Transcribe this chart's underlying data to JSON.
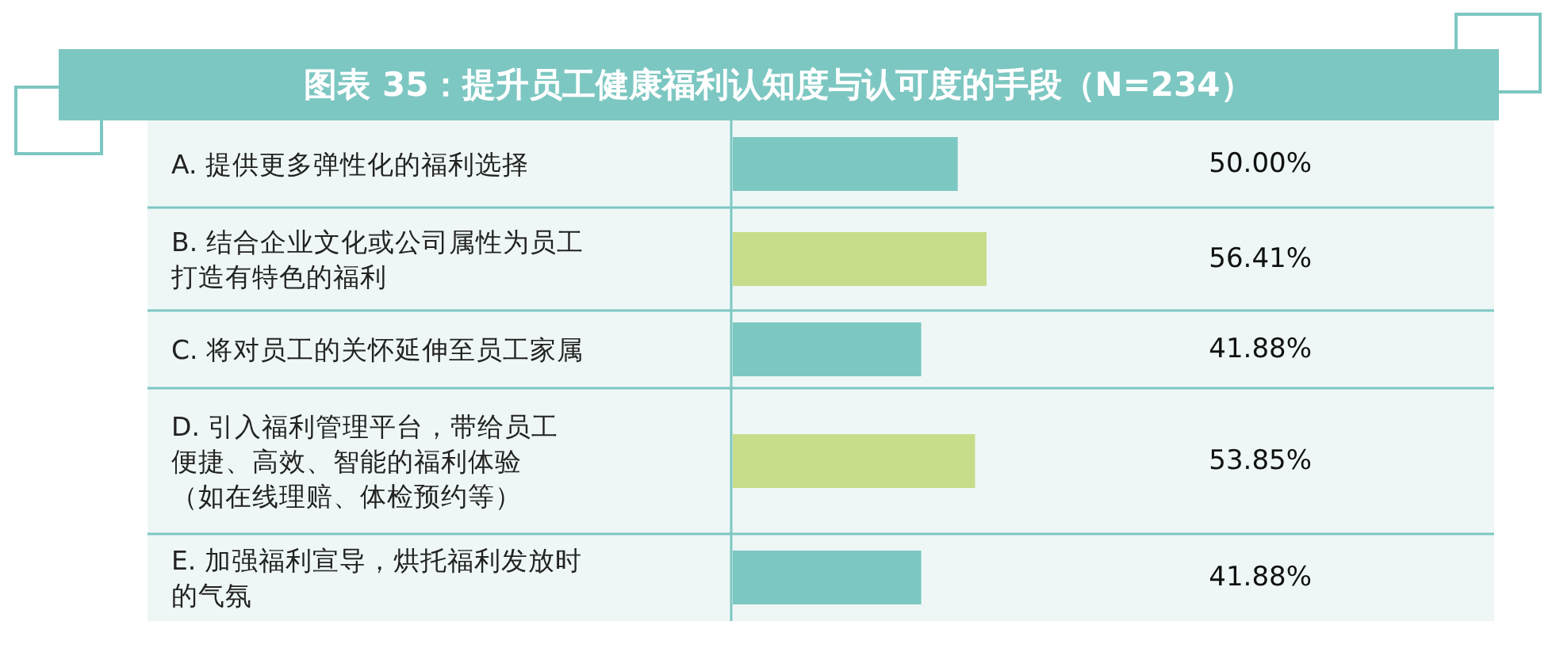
{
  "chart_data": {
    "type": "bar",
    "orientation": "horizontal",
    "title": "图表 35：提升员工健康福利认知度与认可度的手段（N=234）",
    "categories": [
      "A. 提供更多弹性化的福利选择",
      "B. 结合企业文化或公司属性为员工打造有特色的福利",
      "C. 将对员工的关怀延伸至员工家属",
      "D. 引入福利管理平台，带给员工便捷、高效、智能的福利体验（如在线理赔、体检预约等）",
      "E. 加强福利宣导，烘托福利发放时的气氛"
    ],
    "values": [
      50.0,
      56.41,
      41.88,
      53.85,
      41.88
    ],
    "value_labels": [
      "50.00%",
      "56.41%",
      "41.88%",
      "53.85%",
      "41.88%"
    ],
    "colors": [
      "#7dc7c2",
      "#c8dd8a",
      "#7dc7c2",
      "#c8dd8a",
      "#7dc7c2"
    ]
  }
}
